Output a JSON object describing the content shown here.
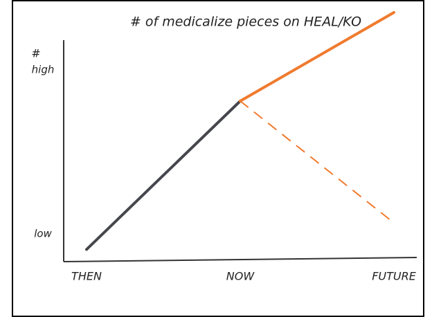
{
  "chart_data": {
    "type": "line",
    "title": "# of medicalize pieces on HEAL/KO",
    "y_label": "#",
    "xlim": [
      -0.2,
      2.2
    ],
    "xticks": [
      {
        "value": 0,
        "label": "THEN"
      },
      {
        "value": 1,
        "label": "NOW"
      },
      {
        "value": 2,
        "label": "FUTURE"
      }
    ],
    "ylim": [
      0,
      11
    ],
    "yticks": [
      {
        "value": 1,
        "label": "low"
      },
      {
        "value": 8.4,
        "label": "high"
      }
    ],
    "series": [
      {
        "color": "#45474c",
        "dashed": false,
        "x": [
          0,
          1
        ],
        "values": [
          0.3,
          7
        ]
      },
      {
        "color": "#f07a2e",
        "dashed": false,
        "x": [
          1,
          2
        ],
        "values": [
          7,
          11
        ]
      },
      {
        "color": "#f07a2e",
        "dashed": true,
        "x": [
          1,
          2
        ],
        "values": [
          7,
          1.5
        ]
      }
    ]
  }
}
